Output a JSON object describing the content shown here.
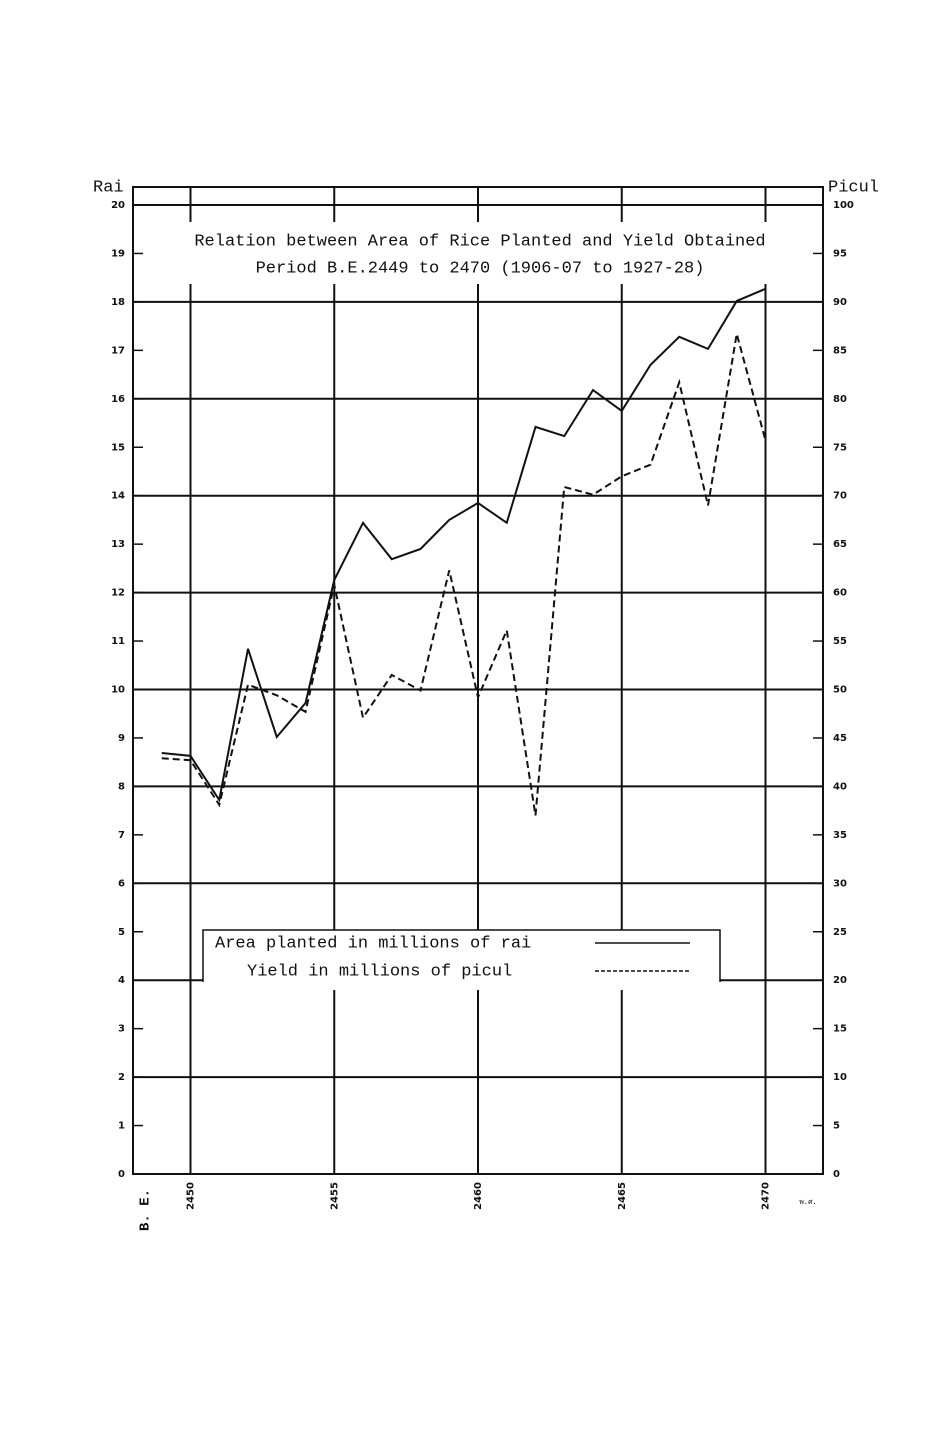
{
  "chart_data": {
    "type": "line",
    "title": "Relation between Area of Rice Planted and Yield Obtained",
    "subtitle": "Period B.E.2449 to 2470 (1906-07 to 1927-28)",
    "y_label": "Rai",
    "y2_label": "Picul",
    "x_label": "B. E.",
    "x_label_right": "พ.ศ.",
    "x": [
      2449,
      2450,
      2451,
      2452,
      2453,
      2454,
      2455,
      2456,
      2457,
      2458,
      2459,
      2460,
      2461,
      2462,
      2463,
      2464,
      2465,
      2466,
      2467,
      2468,
      2469,
      2470
    ],
    "series": [
      {
        "name": "Area planted in millions of rai",
        "color": "#111111",
        "style": "solid",
        "values": [
          8.69,
          8.63,
          7.72,
          10.84,
          9.02,
          9.72,
          12.26,
          13.44,
          12.69,
          12.9,
          13.5,
          13.85,
          13.44,
          15.42,
          15.23,
          16.18,
          15.75,
          16.7,
          17.28,
          17.03,
          18.02,
          18.27
        ]
      },
      {
        "name": "Yield in millions of picul",
        "color": "#111111",
        "style": "dashed",
        "axis": "y2",
        "values": [
          42.9,
          42.7,
          38.1,
          50.5,
          49.4,
          47.7,
          60.8,
          47.1,
          51.5,
          49.9,
          62.3,
          49.2,
          56.1,
          37.0,
          70.9,
          70.1,
          72.0,
          73.2,
          81.7,
          69.0,
          86.7,
          75.7
        ]
      }
    ],
    "xlim": [
      2448,
      2472
    ],
    "xticks": [
      2450,
      2455,
      2460,
      2465,
      2470
    ],
    "ylim": [
      0,
      20
    ],
    "yticks": [
      0,
      1,
      2,
      3,
      4,
      5,
      6,
      7,
      8,
      9,
      10,
      11,
      12,
      13,
      14,
      15,
      16,
      17,
      18,
      19,
      20
    ],
    "y2lim": [
      0,
      100
    ],
    "y2ticks": [
      0,
      5,
      10,
      15,
      20,
      25,
      30,
      35,
      40,
      45,
      50,
      55,
      60,
      65,
      70,
      75,
      80,
      85,
      90,
      95,
      100
    ],
    "grid": true
  }
}
